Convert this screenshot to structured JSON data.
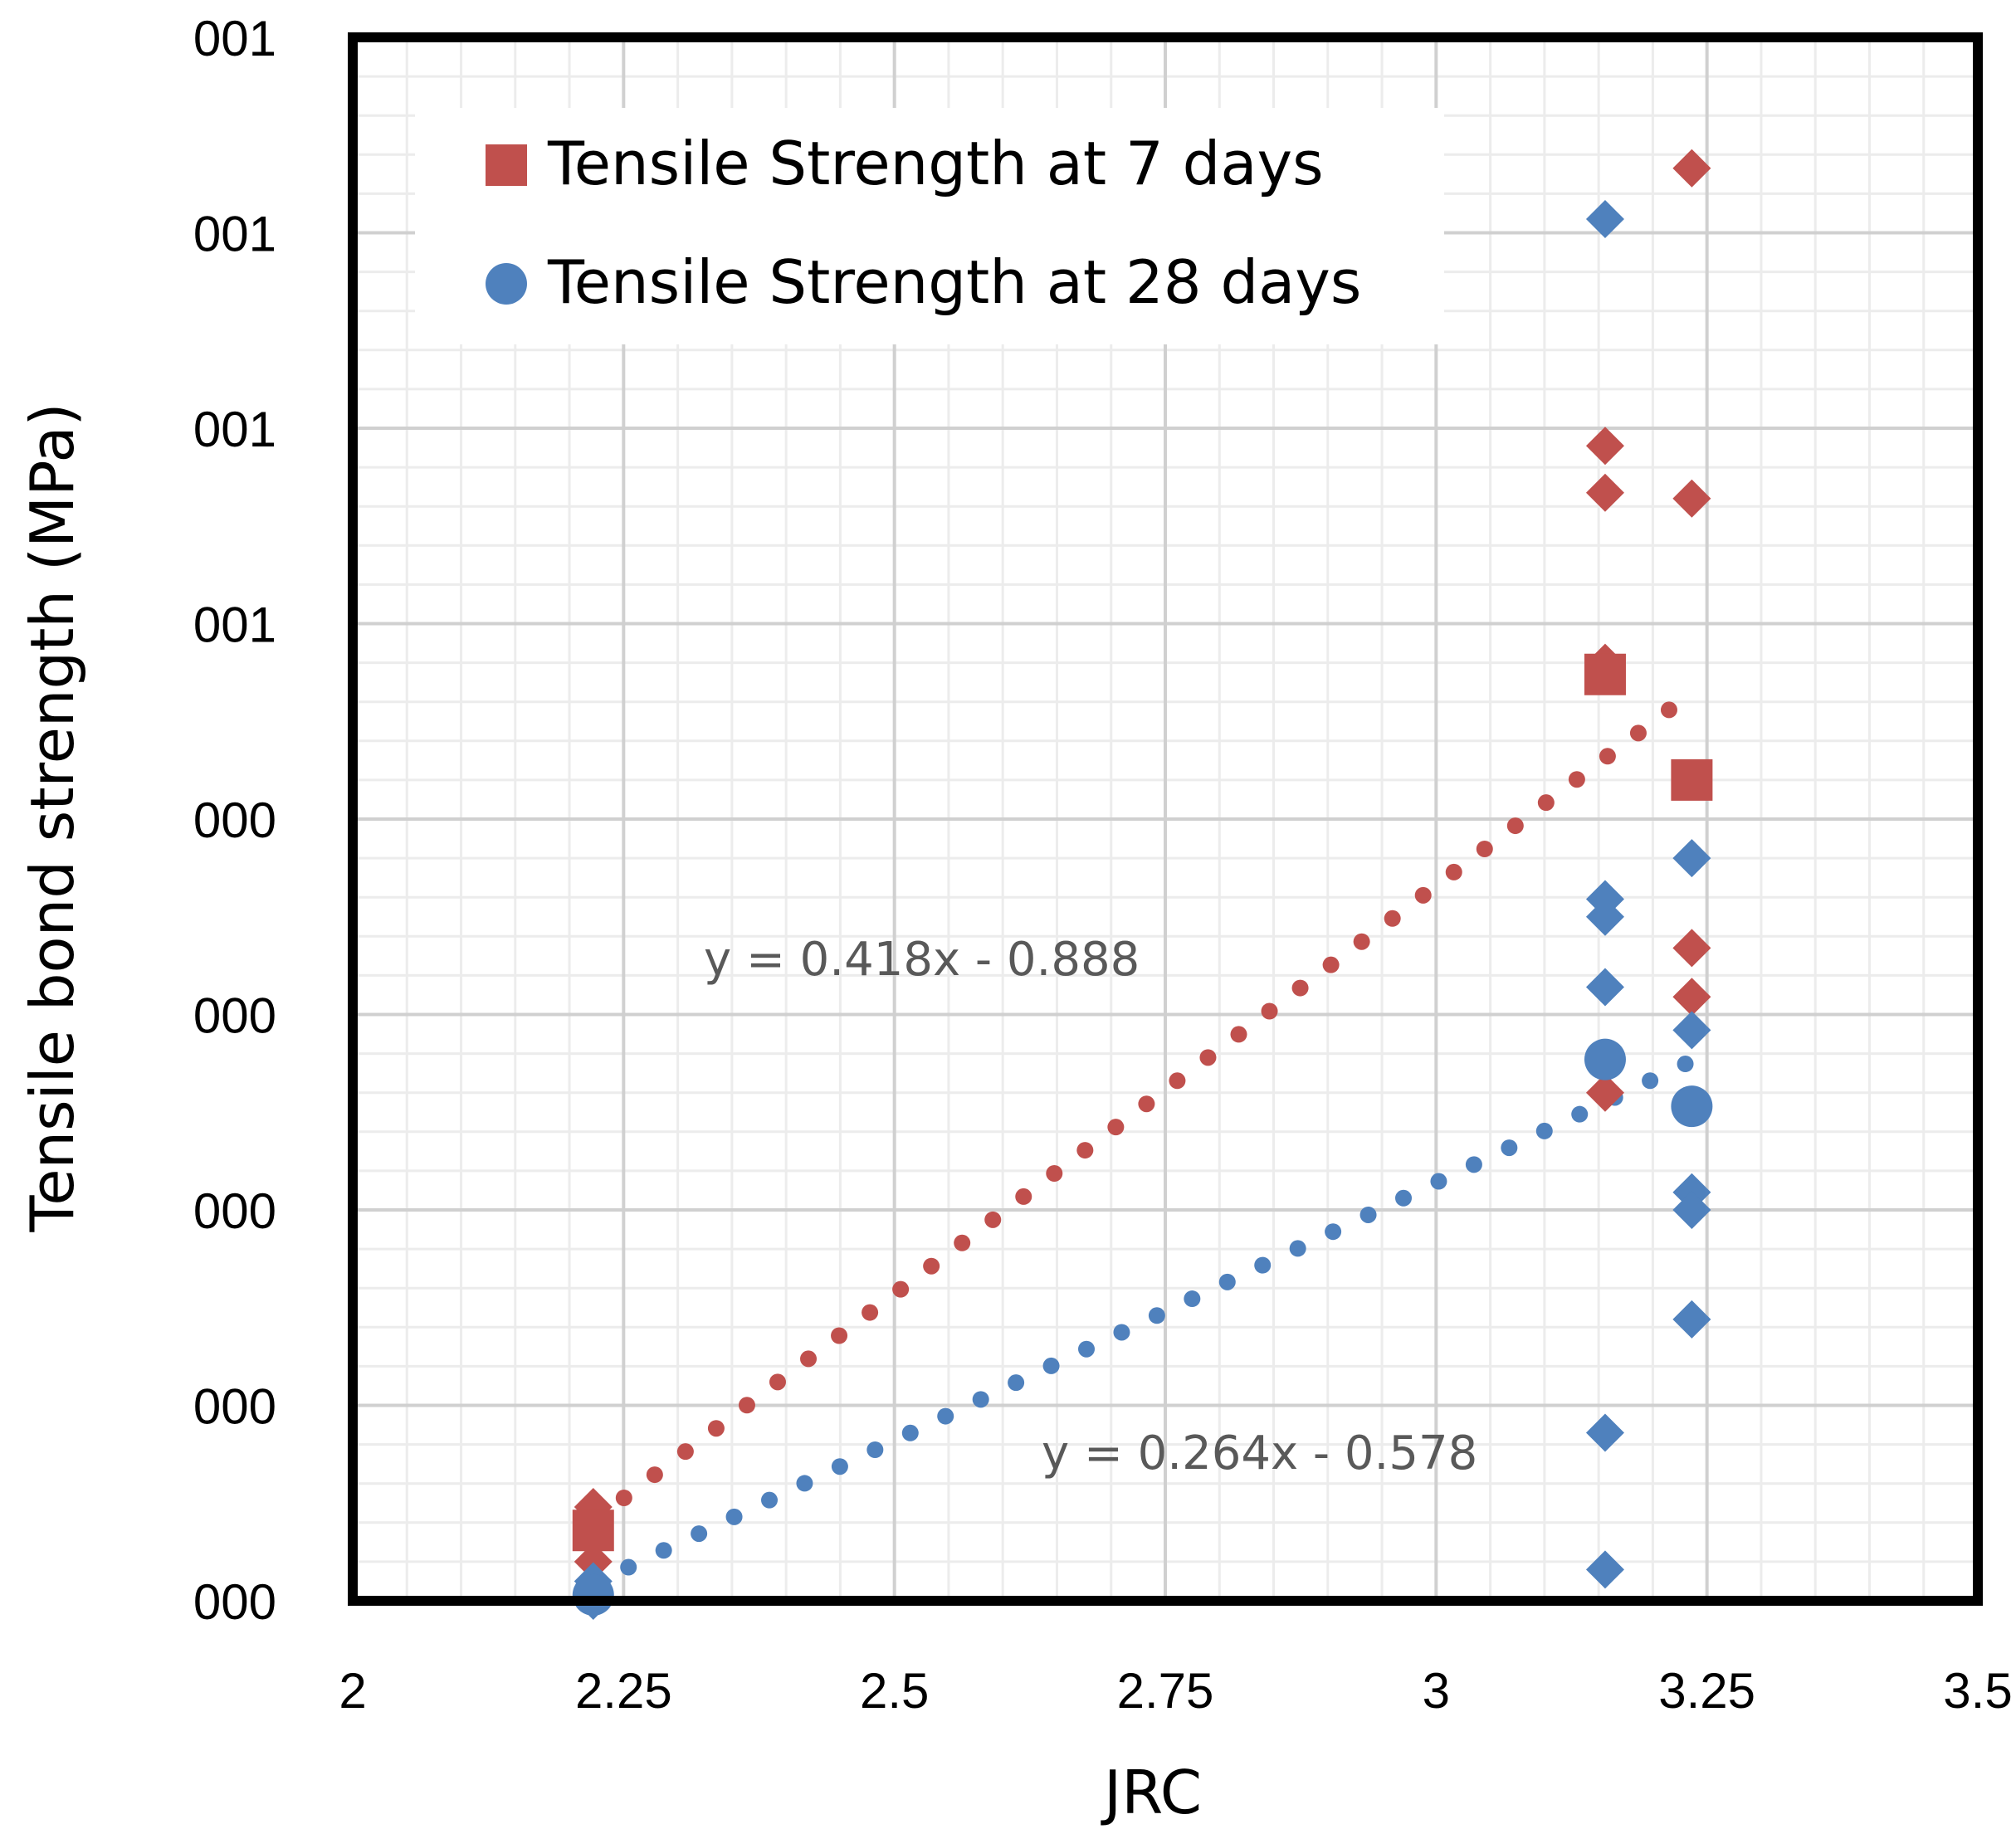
{
  "chart_data": {
    "type": "scatter",
    "title": "",
    "xlabel": "JRC",
    "ylabel": "Tensile bond strength (MPa)",
    "xlim": [
      2,
      3.5
    ],
    "ylim": [
      0,
      0.8
    ],
    "grid": true,
    "x_ticks": [
      2,
      2.25,
      2.5,
      2.75,
      3,
      3.25,
      3.5
    ],
    "x_tick_labels": [
      "2",
      "2.25",
      "2.5",
      "2.75",
      "3",
      "3.25",
      "3.5"
    ],
    "y_ticks": [
      0,
      0.1,
      0.2,
      0.3,
      0.4,
      0.5,
      0.6,
      0.7,
      0.8
    ],
    "y_tick_labels": [
      "000",
      "000",
      "000",
      "000",
      "000",
      "001",
      "001",
      "001",
      "001"
    ],
    "legend_position": "top-left",
    "colors": {
      "red": "#c0504d",
      "blue": "#4f81bd",
      "equation": "#595959"
    },
    "series": [
      {
        "name": "Tensile Strength at 7 days",
        "marker": "square",
        "color": "#c0504d",
        "points": [
          [
            2.222,
            0.036
          ],
          [
            3.156,
            0.474
          ],
          [
            3.236,
            0.42
          ]
        ]
      },
      {
        "name": "Tensile Strength at 28 days",
        "marker": "circle",
        "color": "#4f81bd",
        "points": [
          [
            2.222,
            0.003
          ],
          [
            3.156,
            0.277
          ],
          [
            3.236,
            0.253
          ]
        ]
      },
      {
        "name": "7 days samples",
        "marker": "diamond",
        "color": "#c0504d",
        "show_in_legend": false,
        "points": [
          [
            2.222,
            0.048
          ],
          [
            2.222,
            0.04
          ],
          [
            2.222,
            0.02
          ],
          [
            3.156,
            0.591
          ],
          [
            3.156,
            0.567
          ],
          [
            3.156,
            0.48
          ],
          [
            3.156,
            0.26
          ],
          [
            3.236,
            0.733
          ],
          [
            3.236,
            0.564
          ],
          [
            3.236,
            0.334
          ],
          [
            3.236,
            0.309
          ]
        ]
      },
      {
        "name": "28 days samples",
        "marker": "diamond",
        "color": "#4f81bd",
        "show_in_legend": false,
        "points": [
          [
            2.222,
            0.01
          ],
          [
            2.222,
            0.0
          ],
          [
            3.156,
            0.707
          ],
          [
            3.156,
            0.359
          ],
          [
            3.156,
            0.35
          ],
          [
            3.156,
            0.314
          ],
          [
            3.156,
            0.086
          ],
          [
            3.156,
            0.016
          ],
          [
            3.236,
            0.38
          ],
          [
            3.236,
            0.292
          ],
          [
            3.236,
            0.209
          ],
          [
            3.236,
            0.2
          ],
          [
            3.236,
            0.144
          ]
        ]
      }
    ],
    "trendlines": [
      {
        "name": "7 days trend",
        "color": "#c0504d",
        "style": "dotted",
        "x_range": [
          2.222,
          3.215
        ],
        "slope": 0.418,
        "intercept": -0.888,
        "equation": "y = 0.418x - 0.888"
      },
      {
        "name": "28 days trend",
        "color": "#4f81bd",
        "style": "dotted",
        "x_range": [
          2.222,
          3.23
        ],
        "slope": 0.264,
        "intercept": -0.578,
        "equation": "y = 0.264x - 0.578"
      }
    ]
  }
}
